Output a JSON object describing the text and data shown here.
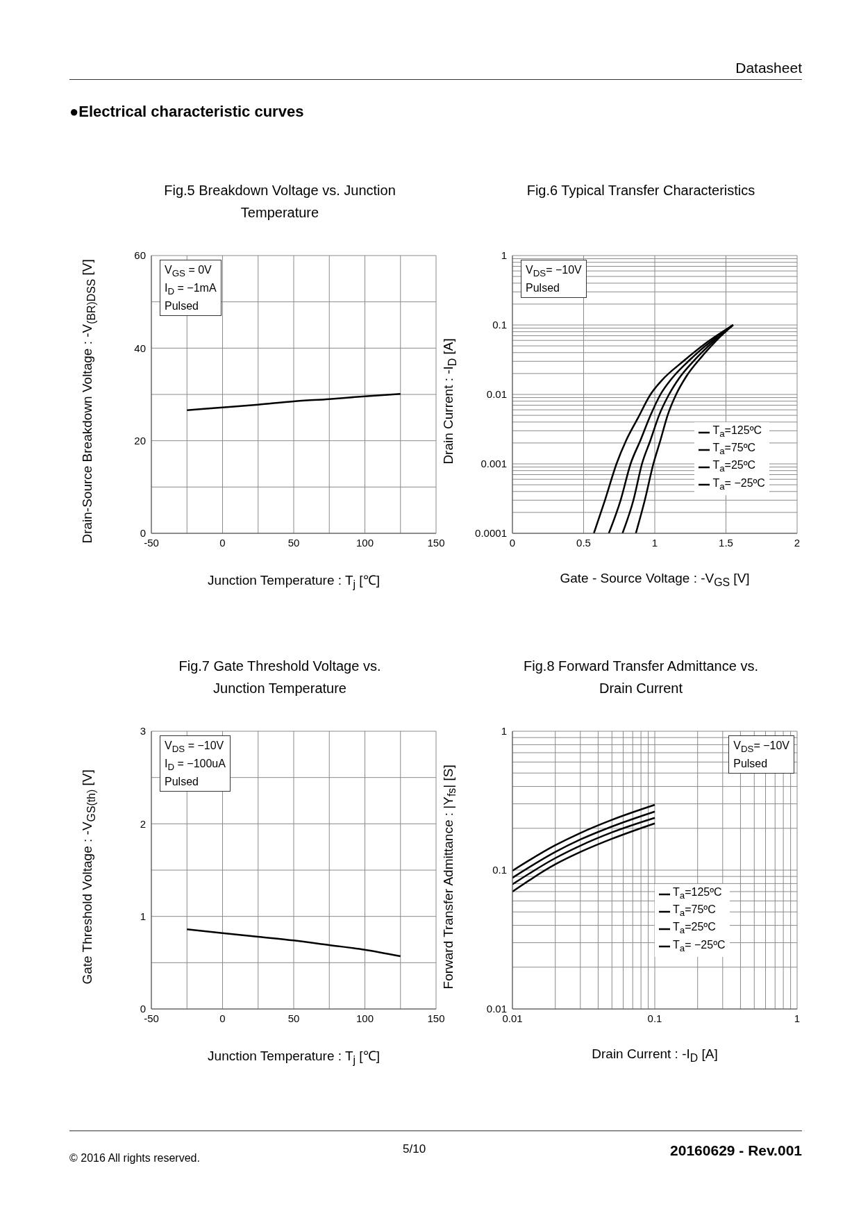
{
  "chart_data": [
    {
      "type": "other",
      "title": "●Electrical characteristic curves",
      "annotations": [
        "Datasheet",
        "© 2016 All rights reserved.",
        "5/10",
        "20160629 - Rev.001"
      ]
    },
    {
      "type": "line",
      "title": "Fig.5 Breakdown Voltage vs. Junction Temperature",
      "xlabel": "Junction Temperature : T$_{j}$ [℃]",
      "ylabel": "Drain-Source Breakdown Voltage : -V$_{(BR)DSS}$ [V]",
      "annotations": [
        "V$_{GS}$ = 0V",
        "I$_{D}$ = −1mA",
        "Pulsed"
      ],
      "series": [
        {
          "color": "#000000",
          "x": [
            -25,
            0,
            25,
            50,
            75,
            100,
            125
          ],
          "values": [
            26.6,
            27.2,
            27.8,
            28.5,
            29.0,
            29.6,
            30.1
          ]
        }
      ],
      "xlim": [
        -50,
        150
      ],
      "xticks": [
        -50,
        {
          "value": -25,
          "label": null
        },
        0,
        {
          "value": 25,
          "label": null
        },
        50,
        {
          "value": 75,
          "label": null
        },
        100,
        {
          "value": 125,
          "label": null
        },
        150
      ],
      "ylim": [
        0,
        60
      ],
      "yticks": [
        0,
        {
          "value": 10,
          "label": null
        },
        20,
        {
          "value": 30,
          "label": null
        },
        40,
        {
          "value": 50,
          "label": null
        },
        60
      ],
      "grid": true,
      "marker": "none",
      "line_style": "solid"
    },
    {
      "type": "line",
      "title": "Fig.6 Typical Transfer Characteristics",
      "xlabel": "Gate - Source Voltage : -V$_{GS}$ [V]",
      "ylabel": "Drain Current : -I$_{D}$ [A]",
      "annotations": [
        "V$_{DS}$= −10V",
        "Pulsed"
      ],
      "log": "y",
      "legend": "right",
      "series": [
        {
          "name": "T$_{a}$=125ºC",
          "color": "#000000",
          "x": [
            0.572,
            0.65,
            0.731,
            0.8,
            0.88,
            0.97,
            1.05,
            1.2,
            1.36,
            1.55
          ],
          "values": [
            0.0001,
            0.0003,
            0.001,
            0.0022,
            0.0045,
            0.01,
            0.016,
            0.03,
            0.055,
            0.1
          ]
        },
        {
          "name": "T$_{a}$=75ºC",
          "color": "#000000",
          "x": [
            0.677,
            0.76,
            0.83,
            0.9,
            0.97,
            1.04,
            1.12,
            1.25,
            1.39,
            1.55
          ],
          "values": [
            0.0001,
            0.0003,
            0.001,
            0.0022,
            0.005,
            0.01,
            0.017,
            0.032,
            0.057,
            0.1
          ]
        },
        {
          "name": "T$_{a}$=25ºC",
          "color": "#000000",
          "x": [
            0.773,
            0.85,
            0.91,
            0.97,
            1.03,
            1.1,
            1.17,
            1.29,
            1.42,
            1.55
          ],
          "values": [
            0.0001,
            0.0003,
            0.001,
            0.0022,
            0.005,
            0.01,
            0.017,
            0.033,
            0.06,
            0.1
          ]
        },
        {
          "name": "T$_{a}$= −25ºC",
          "color": "#000000",
          "x": [
            0.867,
            0.93,
            0.99,
            1.04,
            1.09,
            1.15,
            1.22,
            1.33,
            1.44,
            1.55
          ],
          "values": [
            0.0001,
            0.0003,
            0.001,
            0.0022,
            0.005,
            0.01,
            0.018,
            0.035,
            0.062,
            0.1
          ]
        }
      ],
      "xlim": [
        0,
        2
      ],
      "xticks": [
        0,
        0.5,
        1,
        1.5,
        2
      ],
      "ylim": [
        0.0001,
        1
      ],
      "yticks": [
        0.0001,
        {
          "value": 0.0002,
          "label": null
        },
        {
          "value": 0.0003,
          "label": null
        },
        {
          "value": 0.0004,
          "label": null
        },
        {
          "value": 0.0005,
          "label": null
        },
        {
          "value": 0.0006,
          "label": null
        },
        {
          "value": 0.0007,
          "label": null
        },
        {
          "value": 0.0008,
          "label": null
        },
        {
          "value": 0.0009,
          "label": null
        },
        0.001,
        {
          "value": 0.002,
          "label": null
        },
        {
          "value": 0.003,
          "label": null
        },
        {
          "value": 0.004,
          "label": null
        },
        {
          "value": 0.005,
          "label": null
        },
        {
          "value": 0.006,
          "label": null
        },
        {
          "value": 0.007,
          "label": null
        },
        {
          "value": 0.008,
          "label": null
        },
        {
          "value": 0.009,
          "label": null
        },
        0.01,
        {
          "value": 0.02,
          "label": null
        },
        {
          "value": 0.03,
          "label": null
        },
        {
          "value": 0.04,
          "label": null
        },
        {
          "value": 0.05,
          "label": null
        },
        {
          "value": 0.06,
          "label": null
        },
        {
          "value": 0.07,
          "label": null
        },
        {
          "value": 0.08,
          "label": null
        },
        {
          "value": 0.09,
          "label": null
        },
        0.1,
        {
          "value": 0.2,
          "label": null
        },
        {
          "value": 0.3,
          "label": null
        },
        {
          "value": 0.4,
          "label": null
        },
        {
          "value": 0.5,
          "label": null
        },
        {
          "value": 0.6,
          "label": null
        },
        {
          "value": 0.7,
          "label": null
        },
        {
          "value": 0.8,
          "label": null
        },
        {
          "value": 0.9,
          "label": null
        },
        1
      ],
      "grid": true,
      "marker": "none",
      "line_style": "solid"
    },
    {
      "type": "line",
      "title": "Fig.7 Gate Threshold Voltage vs. Junction Temperature",
      "xlabel": "Junction Temperature : T$_{j}$ [℃]",
      "ylabel": "Gate Threshold Voltage : -V$_{GS(th)}$ [V]",
      "annotations": [
        "V$_{DS}$ = −10V",
        "I$_{D}$ = −100uA",
        "Pulsed"
      ],
      "series": [
        {
          "color": "#000000",
          "x": [
            -25,
            0,
            25,
            50,
            75,
            100,
            125
          ],
          "values": [
            0.86,
            0.82,
            0.78,
            0.74,
            0.69,
            0.64,
            0.57
          ]
        }
      ],
      "xlim": [
        -50,
        150
      ],
      "xticks": [
        -50,
        {
          "value": -25,
          "label": null
        },
        0,
        {
          "value": 25,
          "label": null
        },
        50,
        {
          "value": 75,
          "label": null
        },
        100,
        {
          "value": 125,
          "label": null
        },
        150
      ],
      "ylim": [
        0,
        3
      ],
      "yticks": [
        0,
        {
          "value": 0.5,
          "label": null
        },
        1,
        {
          "value": 1.5,
          "label": null
        },
        2,
        {
          "value": 2.5,
          "label": null
        },
        3
      ],
      "grid": true,
      "marker": "none",
      "line_style": "solid"
    },
    {
      "type": "line",
      "title": "Fig.8 Forward Transfer Admittance vs. Drain Current",
      "xlabel": "Drain Current : -I$_{D}$ [A]",
      "ylabel": "Forward Transfer Admittance : |Y$_{fs}$| [S]",
      "annotations": [
        "V$_{DS}$= −10V",
        "Pulsed"
      ],
      "log": "xy",
      "legend": "center",
      "series": [
        {
          "name": "T$_{a}$=125ºC",
          "color": "#000000",
          "x": [
            0.01,
            0.02,
            0.03,
            0.05,
            0.1
          ],
          "values": [
            0.099,
            0.151,
            0.185,
            0.23,
            0.295
          ]
        },
        {
          "name": "T$_{a}$=75ºC",
          "color": "#000000",
          "x": [
            0.01,
            0.02,
            0.03,
            0.05,
            0.1
          ],
          "values": [
            0.088,
            0.135,
            0.166,
            0.206,
            0.264
          ]
        },
        {
          "name": "T$_{a}$=25ºC",
          "color": "#000000",
          "x": [
            0.01,
            0.02,
            0.03,
            0.05,
            0.1
          ],
          "values": [
            0.079,
            0.122,
            0.15,
            0.187,
            0.238
          ]
        },
        {
          "name": "T$_{a}$= −25ºC",
          "color": "#000000",
          "x": [
            0.01,
            0.02,
            0.03,
            0.05,
            0.1
          ],
          "values": [
            0.07,
            0.11,
            0.135,
            0.168,
            0.217
          ]
        }
      ],
      "xlim": [
        0.01,
        1
      ],
      "xticks": [
        0.01,
        {
          "value": 0.02,
          "label": null
        },
        {
          "value": 0.03,
          "label": null
        },
        {
          "value": 0.04,
          "label": null
        },
        {
          "value": 0.05,
          "label": null
        },
        {
          "value": 0.06,
          "label": null
        },
        {
          "value": 0.07,
          "label": null
        },
        {
          "value": 0.08,
          "label": null
        },
        {
          "value": 0.09,
          "label": null
        },
        0.1,
        {
          "value": 0.2,
          "label": null
        },
        {
          "value": 0.3,
          "label": null
        },
        {
          "value": 0.4,
          "label": null
        },
        {
          "value": 0.5,
          "label": null
        },
        {
          "value": 0.6,
          "label": null
        },
        {
          "value": 0.7,
          "label": null
        },
        {
          "value": 0.8,
          "label": null
        },
        {
          "value": 0.9,
          "label": null
        },
        1
      ],
      "ylim": [
        0.01,
        1
      ],
      "yticks": [
        0.01,
        {
          "value": 0.02,
          "label": null
        },
        {
          "value": 0.03,
          "label": null
        },
        {
          "value": 0.04,
          "label": null
        },
        {
          "value": 0.05,
          "label": null
        },
        {
          "value": 0.06,
          "label": null
        },
        {
          "value": 0.07,
          "label": null
        },
        {
          "value": 0.08,
          "label": null
        },
        {
          "value": 0.09,
          "label": null
        },
        0.1,
        {
          "value": 0.2,
          "label": null
        },
        {
          "value": 0.3,
          "label": null
        },
        {
          "value": 0.4,
          "label": null
        },
        {
          "value": 0.5,
          "label": null
        },
        {
          "value": 0.6,
          "label": null
        },
        {
          "value": 0.7,
          "label": null
        },
        {
          "value": 0.8,
          "label": null
        },
        {
          "value": 0.9,
          "label": null
        },
        1
      ],
      "grid": true,
      "marker": "none",
      "line_style": "solid"
    }
  ]
}
